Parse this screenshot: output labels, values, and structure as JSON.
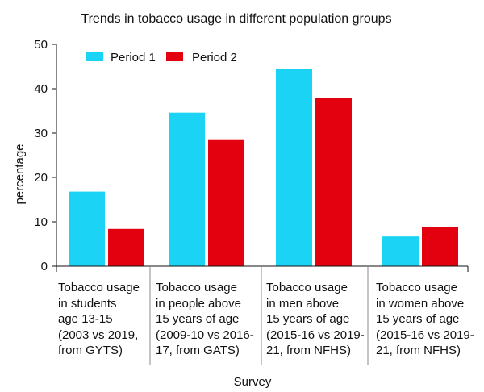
{
  "chart_data": {
    "type": "bar",
    "title": "Trends in tobacco usage in different population groups",
    "xlabel": "Survey",
    "ylabel": "percentage",
    "ylim": [
      0,
      50
    ],
    "yticks": [
      0,
      10,
      20,
      30,
      40,
      50
    ],
    "grid": false,
    "legend_position": "top-left",
    "categories": [
      [
        "Tobacco usage",
        "in students",
        "age 13-15",
        "(2003 vs 2019,",
        "from GYTS)"
      ],
      [
        "Tobacco usage",
        "in people above",
        "15 years of age",
        "(2009-10 vs 2016-",
        "17, from GATS)"
      ],
      [
        "Tobacco usage",
        "in men above",
        "15 years of age",
        "(2015-16 vs 2019-",
        "21, from NFHS)"
      ],
      [
        "Tobacco usage",
        "in women above",
        "15 years of age",
        "(2015-16 vs 2019-",
        "21, from NFHS)"
      ]
    ],
    "series": [
      {
        "name": "Period 1",
        "color": "#1ad3f5",
        "values": [
          16.8,
          34.6,
          44.5,
          6.7
        ]
      },
      {
        "name": "Period 2",
        "color": "#e3000f",
        "values": [
          8.4,
          28.6,
          38.0,
          8.8
        ]
      }
    ]
  }
}
